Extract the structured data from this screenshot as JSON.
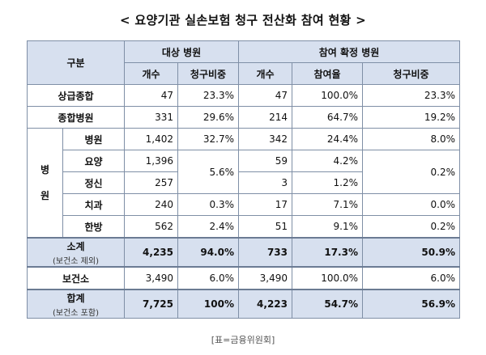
{
  "title": "< 요양기관 실손보험 청구 전산화 참여 현황 >",
  "header": {
    "category": "구분",
    "group_target": "대상 병원",
    "group_confirmed": "참여 확정 병원",
    "count": "개수",
    "claim_share": "청구비중",
    "participation_rate": "참여율"
  },
  "rows": {
    "tertiary": {
      "label": "상급종합",
      "t_count": "47",
      "t_share": "23.3%",
      "c_count": "47",
      "c_rate": "100.0%",
      "c_share": "23.3%"
    },
    "general": {
      "label": "종합병원",
      "t_count": "331",
      "t_share": "29.6%",
      "c_count": "214",
      "c_rate": "64.7%",
      "c_share": "19.2%"
    },
    "hospital_group": {
      "label_top": "병",
      "label_bottom": "원"
    },
    "hospital": {
      "label": "병원",
      "t_count": "1,402",
      "t_share": "32.7%",
      "c_count": "342",
      "c_rate": "24.4%",
      "c_share": "8.0%"
    },
    "nursing": {
      "label": "요양",
      "t_count": "1,396",
      "c_count": "59",
      "c_rate": "4.2%"
    },
    "mental": {
      "label": "정신",
      "t_count": "257",
      "c_count": "3",
      "c_rate": "1.2%"
    },
    "nursing_mental_t_share": "5.6%",
    "nursing_mental_c_share": "0.2%",
    "dental": {
      "label": "치과",
      "t_count": "240",
      "t_share": "0.3%",
      "c_count": "17",
      "c_rate": "7.1%",
      "c_share": "0.0%"
    },
    "oriental": {
      "label": "한방",
      "t_count": "562",
      "t_share": "2.4%",
      "c_count": "51",
      "c_rate": "9.1%",
      "c_share": "0.2%"
    },
    "subtotal": {
      "label": "소계",
      "sublabel": "(보건소 제외)",
      "t_count": "4,235",
      "t_share": "94.0%",
      "c_count": "733",
      "c_rate": "17.3%",
      "c_share": "50.9%"
    },
    "health_center": {
      "label": "보건소",
      "t_count": "3,490",
      "t_share": "6.0%",
      "c_count": "3,490",
      "c_rate": "100.0%",
      "c_share": "6.0%"
    },
    "total": {
      "label": "합계",
      "sublabel": "(보건소 포함)",
      "t_count": "7,725",
      "t_share": "100%",
      "c_count": "4,223",
      "c_rate": "54.7%",
      "c_share": "56.9%"
    }
  },
  "source": "[표=금융위원회]"
}
